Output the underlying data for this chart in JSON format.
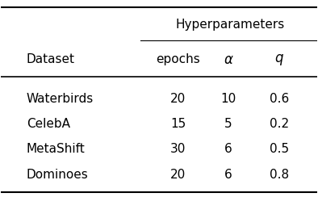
{
  "title": "Hyperparameters",
  "col_header": [
    "Dataset",
    "epochs",
    "α",
    "q"
  ],
  "rows": [
    [
      "Waterbirds",
      "20",
      "10",
      "0.6"
    ],
    [
      "CelebA",
      "15",
      "5",
      "0.2"
    ],
    [
      "MetaShift",
      "30",
      "6",
      "0.5"
    ],
    [
      "Dominoes",
      "20",
      "6",
      "0.8"
    ]
  ],
  "bg_color": "#ffffff",
  "text_color": "#000000",
  "font_size": 11,
  "header_font_size": 11
}
